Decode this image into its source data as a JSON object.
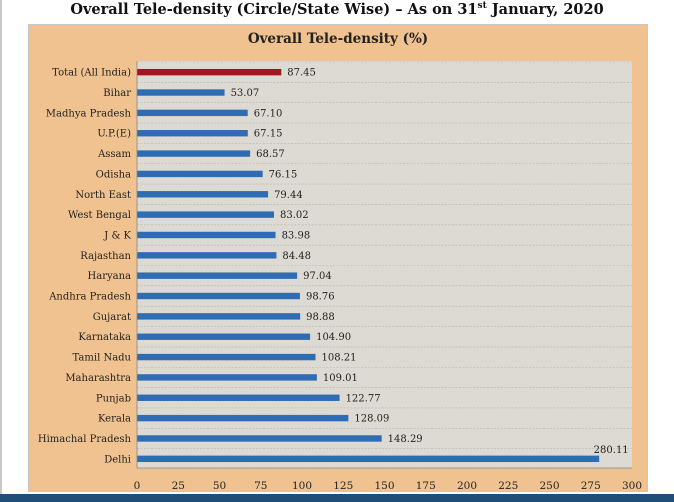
{
  "page": {
    "title_main": "Overall Tele-density (Circle/State Wise) – As on 31",
    "title_sup": "st",
    "title_end": " January, 2020"
  },
  "chart_data": {
    "type": "bar",
    "orientation": "horizontal",
    "title": "Overall Tele-density (%)",
    "xlabel": "",
    "ylabel": "",
    "xlim": [
      0,
      300
    ],
    "x_ticks": [
      0,
      25,
      50,
      75,
      100,
      125,
      150,
      175,
      200,
      225,
      250,
      275,
      300
    ],
    "grid": true,
    "categories": [
      "Total (All India)",
      "Bihar",
      "Madhya Pradesh",
      "U.P.(E)",
      "Assam",
      "Odisha",
      "North East",
      "West Bengal",
      "J & K",
      "Rajasthan",
      "Haryana",
      "Andhra Pradesh",
      "Gujarat",
      "Karnataka",
      "Tamil Nadu",
      "Maharashtra",
      "Punjab",
      "Kerala",
      "Himachal Pradesh",
      "Delhi"
    ],
    "values": [
      87.45,
      53.07,
      67.1,
      67.15,
      68.57,
      76.15,
      79.44,
      83.02,
      83.98,
      84.48,
      97.04,
      98.76,
      98.88,
      104.9,
      108.21,
      109.01,
      122.77,
      128.09,
      148.29,
      280.11
    ],
    "value_labels": [
      "87.45",
      "53.07",
      "67.10",
      "67.15",
      "68.57",
      "76.15",
      "79.44",
      "83.02",
      "83.98",
      "84.48",
      "97.04",
      "98.76",
      "98.88",
      "104.90",
      "108.21",
      "109.01",
      "122.77",
      "128.09",
      "148.29",
      "280.11"
    ],
    "colors": {
      "highlight": "#a31621",
      "bar": "#2e6db4",
      "plot_bg": "#ddd9d3",
      "frame_bg": "#f0c28f",
      "grid": "#b9b5ae"
    }
  }
}
